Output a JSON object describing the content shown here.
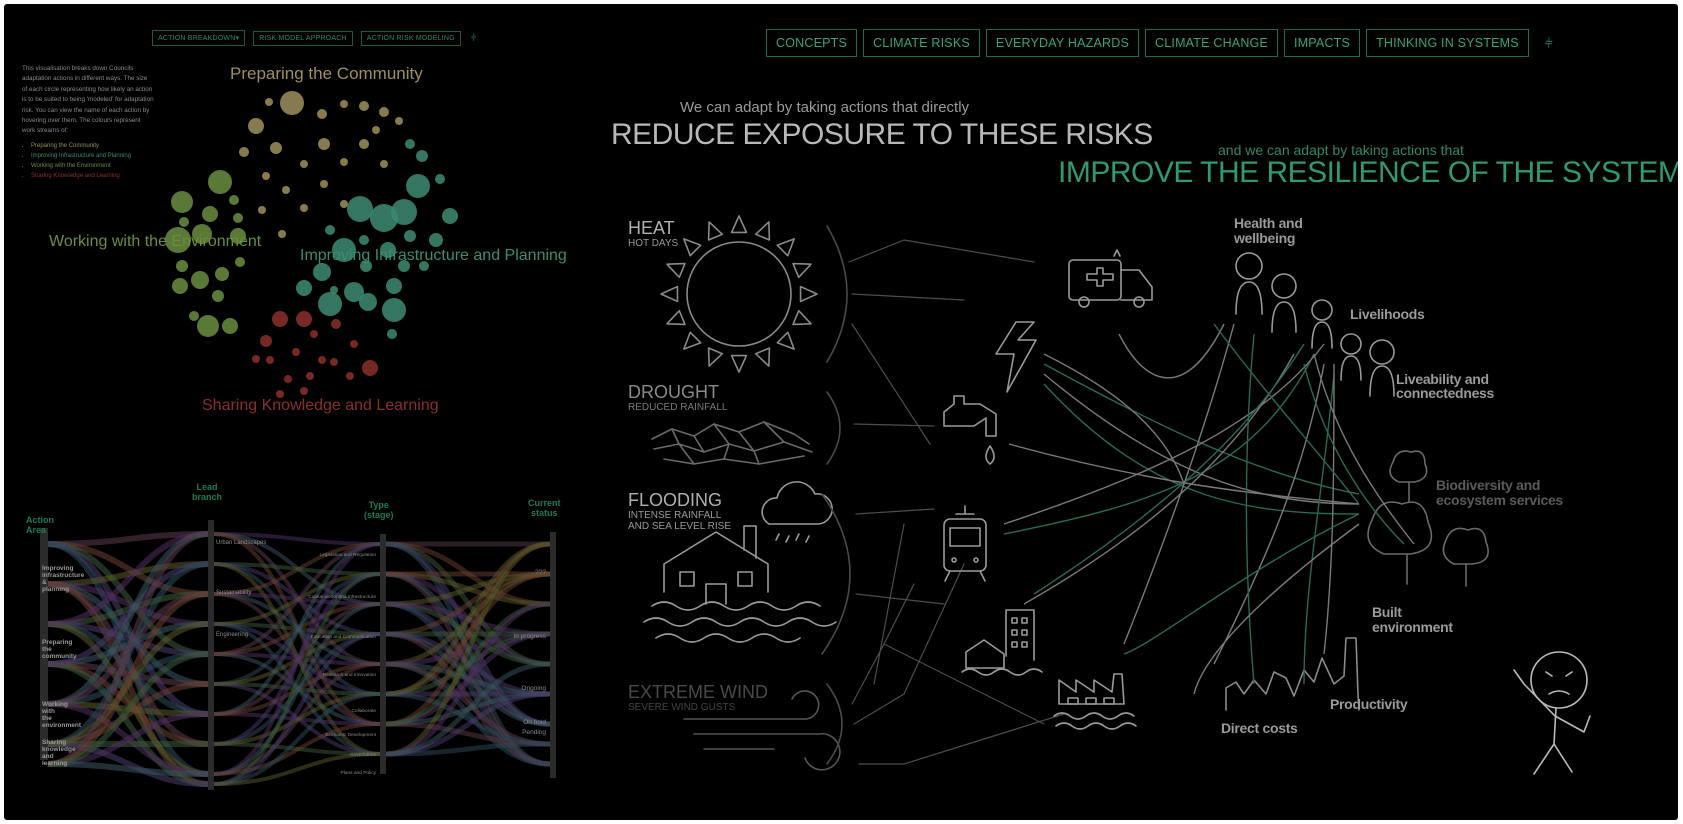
{
  "left_nav": {
    "buttons": [
      "ACTION BREAKDOWN▾",
      "RISK MODEL APPROACH",
      "ACTION RISK MODELING"
    ]
  },
  "intro": {
    "text": "This visualisation breaks down Councils adaptation actions in different ways. The size of each circle representing how likely an action is to be suited to being 'modeled' for adaptation risk. You can view the name of each action by hovering over them. The colours represent work streams of:",
    "streams": [
      "Preparing the Community",
      "Improving Infrastructure and Planning",
      "Working with the Environment",
      "Sharing Knowledge and Learning"
    ]
  },
  "bubble_labels": {
    "preparing": "Preparing the Community",
    "environment": "Working with the Environment",
    "infrastructure": "Improving Infrastructure and Planning",
    "knowledge": "Sharing Knowledge and Learning"
  },
  "sankey": {
    "headers": {
      "action_area": [
        "Action",
        "Area"
      ],
      "lead_branch": [
        "Lead",
        "branch"
      ],
      "type": [
        "Type",
        "(stage)"
      ],
      "status": [
        "Current",
        "status"
      ]
    },
    "action_areas": [
      "Improving infrastructure & planning",
      "Preparing the community",
      "Working with the environment",
      "Sharing knowledge and learning"
    ],
    "branches": [
      "Urban Landscapes",
      "Sustainability",
      "Engineering"
    ],
    "types": [
      "Legislation and Regulation",
      "Capital works and Infrastructure",
      "Education and Communication",
      "Research and Innovation",
      "Collaborate",
      "Economic Development",
      "Governance",
      "Plans and Policy"
    ],
    "statuses": [
      "???",
      "In progress",
      "Ongoing",
      "On hold",
      "Pending"
    ]
  },
  "right_nav": {
    "buttons": [
      "CONCEPTS",
      "CLIMATE RISKS",
      "EVERYDAY HAZARDS",
      "CLIMATE CHANGE",
      "IMPACTS",
      "THINKING IN SYSTEMS"
    ]
  },
  "headline_left": {
    "small": "We can adapt by taking actions that directly",
    "big": "REDUCE EXPOSURE TO THESE RISKS"
  },
  "headline_right": {
    "small": "and we can adapt by taking actions that",
    "big": "IMPROVE THE RESILIENCE OF THE SYSTEM"
  },
  "hazards": [
    {
      "title": "HEAT",
      "sub1": "HOT DAYS",
      "sub2": ""
    },
    {
      "title": "DROUGHT",
      "sub1": "REDUCED RAINFALL",
      "sub2": ""
    },
    {
      "title": "FLOODING",
      "sub1": "INTENSE RAINFALL",
      "sub2": "AND SEA LEVEL RISE"
    },
    {
      "title": "EXTREME WIND",
      "sub1": "SEVERE WIND GUSTS",
      "sub2": ""
    }
  ],
  "outcomes": {
    "health": [
      "Health and",
      "wellbeing"
    ],
    "livelihoods": [
      "Livelihoods"
    ],
    "liveability": [
      "Liveability and",
      "connectedness"
    ],
    "biodiversity": [
      "Biodiversity and",
      "ecosystem services"
    ],
    "built": [
      "Built",
      "environment"
    ],
    "productivity": [
      "Productivity"
    ],
    "direct": [
      "Direct costs"
    ]
  },
  "colors": {
    "accent": "#38a578",
    "preparing": "#9e8f5c",
    "infrastructure": "#3d8b73",
    "environment": "#6a8e3f",
    "knowledge": "#8b2f2c"
  }
}
